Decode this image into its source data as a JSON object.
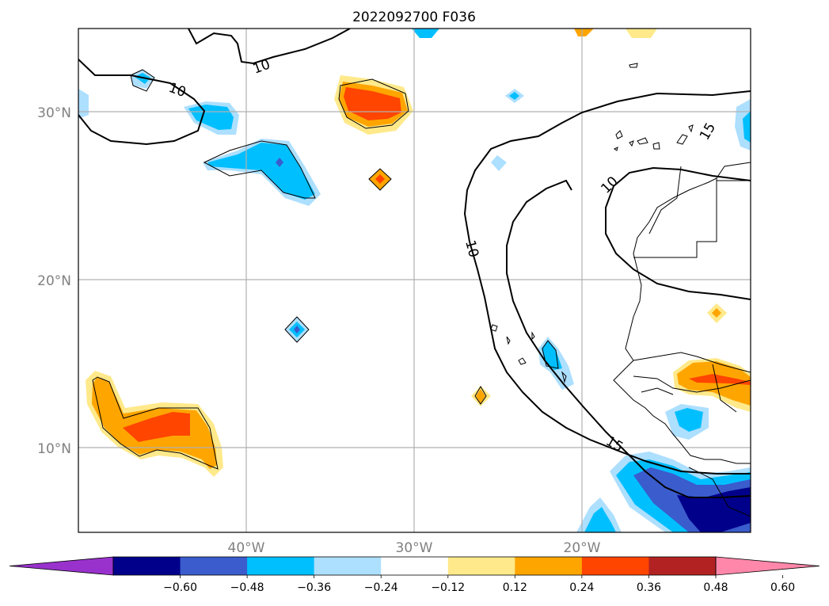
{
  "title": "2022092700 F036",
  "map": {
    "lat_labels": [
      "30°N",
      "20°N",
      "10°N"
    ],
    "lon_labels": [
      "40°W",
      "30°W",
      "20°W"
    ]
  },
  "contour_labels": [
    "10",
    "10",
    "10",
    "10",
    "15",
    "15"
  ],
  "colorbar": {
    "colors": [
      "#9932cc",
      "#00008b",
      "#3a5ccc",
      "#00bfff",
      "#addfff",
      "#ffffff",
      "#ffe98a",
      "#ffa500",
      "#ff4500",
      "#b22222",
      "#ff88aa"
    ],
    "tick_labels": [
      "−0.60",
      "−0.48",
      "−0.36",
      "−0.24",
      "−0.12",
      "0.12",
      "0.24",
      "0.36",
      "0.48",
      "0.60"
    ]
  },
  "colors": {
    "grid": "#b0b0b0",
    "coast": "#000000"
  }
}
